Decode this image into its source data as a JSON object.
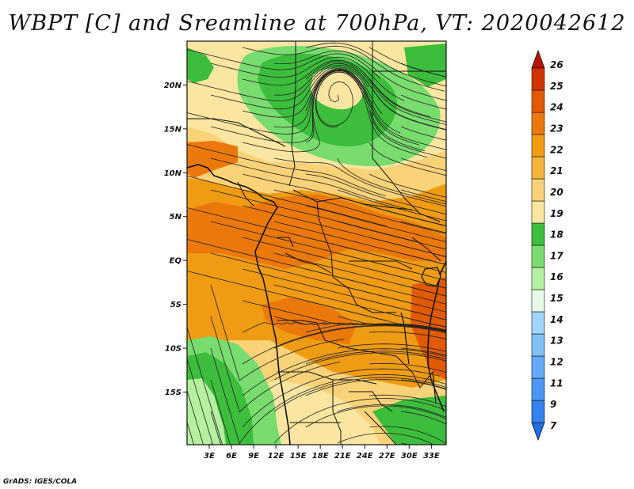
{
  "title": "WBPT [C] and Sreamline at 700hPa, VT: 2020042612",
  "credit": "GrADS: IGES/COLA",
  "map": {
    "lat_range": [
      -21,
      25
    ],
    "lon_range": [
      0,
      35
    ],
    "lat_ticks": [
      "20N",
      "15N",
      "10N",
      "5N",
      "EQ",
      "5S",
      "10S",
      "15S"
    ],
    "lat_tick_values": [
      20,
      15,
      10,
      5,
      0,
      -5,
      -10,
      -15
    ],
    "lon_ticks": [
      "3E",
      "6E",
      "9E",
      "12E",
      "15E",
      "18E",
      "21E",
      "24E",
      "27E",
      "30E",
      "33E"
    ],
    "lon_tick_values": [
      3,
      6,
      9,
      12,
      15,
      18,
      21,
      24,
      27,
      30,
      33
    ]
  },
  "colorbar": {
    "labels": [
      "7",
      "9",
      "11",
      "12",
      "13",
      "14",
      "15",
      "16",
      "17",
      "18",
      "19",
      "20",
      "21",
      "22",
      "23",
      "24",
      "25",
      "26"
    ],
    "colors": [
      "#1e6ee6",
      "#3282f0",
      "#4b96f5",
      "#64aaf8",
      "#82c0fa",
      "#a0d4fc",
      "#e6fae6",
      "#b4f0a0",
      "#78dc6e",
      "#3cbe3c",
      "#fae6a0",
      "#fad278",
      "#f5b43c",
      "#f09b14",
      "#eb780a",
      "#e15a00",
      "#d23200",
      "#b41400"
    ]
  },
  "colors": {
    "coast": "#111111",
    "streamline": "#222222"
  }
}
